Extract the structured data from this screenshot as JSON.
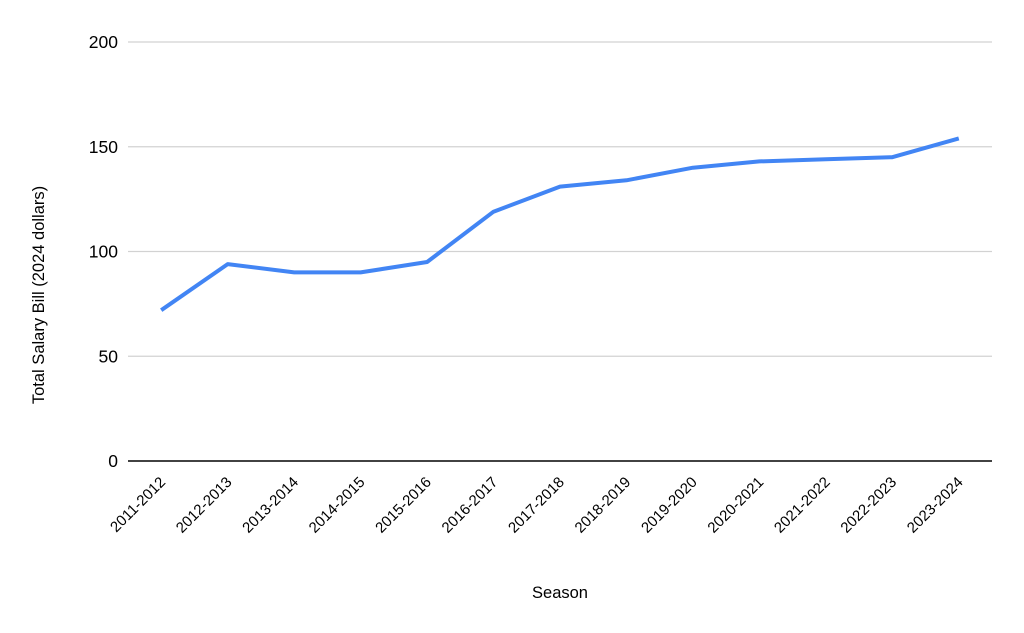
{
  "chart_data": {
    "type": "line",
    "categories": [
      "2011-2012",
      "2012-2013",
      "2013-2014",
      "2014-2015",
      "2015-2016",
      "2016-2017",
      "2017-2018",
      "2018-2019",
      "2019-2020",
      "2020-2021",
      "2021-2022",
      "2022-2023",
      "2023-2024"
    ],
    "values": [
      72,
      94,
      90,
      90,
      95,
      119,
      131,
      134,
      140,
      143,
      144,
      145,
      154
    ],
    "title": "",
    "xlabel": "Season",
    "ylabel": "Total Salary Bill (2024 dollars)",
    "ylim": [
      0,
      200
    ],
    "yticks": [
      0,
      50,
      100,
      150,
      200
    ],
    "grid": true,
    "legend": "none",
    "colors": {
      "line": "#4285f4",
      "grid": "#d2d2d2",
      "axis": "#424242",
      "text": "#000000"
    }
  }
}
